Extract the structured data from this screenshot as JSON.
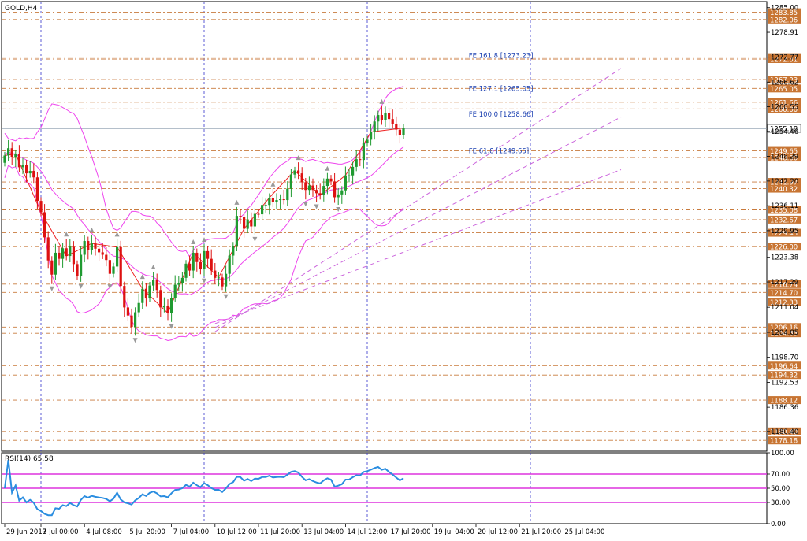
{
  "chart_data": {
    "type": "candlestick",
    "main_title": "GOLD,H4",
    "rsi_title": "RSI(14) 65.58",
    "current_price": "1255.18",
    "price_range": [
      1175.5,
      1286.5
    ],
    "rsi_range": [
      0,
      100
    ],
    "price_ticks": [
      "1285.00",
      "1278.91",
      "1272.77",
      "1266.62",
      "1260.55",
      "1254.46",
      "1248.29",
      "1242.20",
      "1236.11",
      "1229.95",
      "1223.38",
      "1217.29",
      "1211.04",
      "1204.85",
      "1198.70",
      "1192.53",
      "1186.36",
      "1180.40"
    ],
    "rsi_ticks": [
      "100.00",
      "70.00",
      "50.00",
      "30.00",
      "0.00"
    ],
    "rsi_levels": [
      70,
      50,
      30
    ],
    "levels": [
      {
        "label": "1283.85",
        "value": 1283.85
      },
      {
        "label": "1282.06",
        "value": 1282.06
      },
      {
        "label": "1272.77",
        "value": 1272.77
      },
      {
        "label": "1272.31",
        "value": 1272.31
      },
      {
        "label": "1267.23",
        "value": 1267.23
      },
      {
        "label": "1265.05",
        "value": 1265.05
      },
      {
        "label": "1261.66",
        "value": 1261.66
      },
      {
        "label": "1260.00",
        "value": 1260.0
      },
      {
        "label": "1249.65",
        "value": 1249.65
      },
      {
        "label": "1248.00",
        "value": 1248.0
      },
      {
        "label": "1241.97",
        "value": 1241.97
      },
      {
        "label": "1240.32",
        "value": 1240.32
      },
      {
        "label": "1235.08",
        "value": 1235.08
      },
      {
        "label": "1232.67",
        "value": 1232.67
      },
      {
        "label": "1229.43",
        "value": 1229.43
      },
      {
        "label": "1226.00",
        "value": 1226.0
      },
      {
        "label": "1216.74",
        "value": 1216.74
      },
      {
        "label": "1214.70",
        "value": 1214.7
      },
      {
        "label": "1212.33",
        "value": 1212.33
      },
      {
        "label": "1206.16",
        "value": 1206.16
      },
      {
        "label": "1204.63",
        "value": 1204.63
      },
      {
        "label": "1196.64",
        "value": 1196.64
      },
      {
        "label": "1194.32",
        "value": 1194.32
      },
      {
        "label": "1188.12",
        "value": 1188.12
      },
      {
        "label": "1180.40",
        "value": 1180.4
      },
      {
        "label": "1178.18",
        "value": 1178.18
      }
    ],
    "fe_labels": [
      {
        "text": "FE 161.8 [1273.23]",
        "value": 1273.23
      },
      {
        "text": "FE 127.1 [1265.05]",
        "value": 1265.05
      },
      {
        "text": "FE 100.0 [1258.66]",
        "value": 1258.66
      },
      {
        "text": "FE 61.8 [1249.65]",
        "value": 1249.65
      }
    ],
    "x_labels": [
      {
        "text": "29 Jun 2017",
        "bar": 0
      },
      {
        "text": "3 Jul 00:00",
        "bar": 10
      },
      {
        "text": "4 Jul 08:00",
        "bar": 22
      },
      {
        "text": "5 Jul 20:00",
        "bar": 34
      },
      {
        "text": "7 Jul 04:00",
        "bar": 46
      },
      {
        "text": "10 Jul 12:00",
        "bar": 58
      },
      {
        "text": "11 Jul 20:00",
        "bar": 70
      },
      {
        "text": "13 Jul 04:00",
        "bar": 82
      },
      {
        "text": "14 Jul 12:00",
        "bar": 94
      },
      {
        "text": "17 Jul 20:00",
        "bar": 106
      },
      {
        "text": "19 Jul 04:00",
        "bar": 118
      },
      {
        "text": "20 Jul 12:00",
        "bar": 130
      },
      {
        "text": "21 Jul 20:00",
        "bar": 142
      },
      {
        "text": "25 Jul 04:00",
        "bar": 154
      }
    ],
    "period_separators": [
      10,
      55,
      100,
      145
    ],
    "closes": [
      1248.5,
      1250.3,
      1248.0,
      1248.9,
      1245.6,
      1246.2,
      1244.1,
      1244.7,
      1243.1,
      1237.3,
      1234.5,
      1228.3,
      1222.6,
      1219.1,
      1224.5,
      1223.0,
      1225.6,
      1223.7,
      1226.0,
      1221.7,
      1218.7,
      1224.0,
      1227.4,
      1225.2,
      1226.8,
      1225.5,
      1224.6,
      1224.0,
      1222.7,
      1219.3,
      1221.1,
      1225.9,
      1216.3,
      1211.0,
      1209.0,
      1206.2,
      1209.8,
      1212.1,
      1215.6,
      1213.2,
      1216.4,
      1217.8,
      1215.3,
      1211.0,
      1211.3,
      1209.6,
      1213.3,
      1216.6,
      1216.9,
      1218.3,
      1221.8,
      1220.1,
      1224.5,
      1222.2,
      1220.4,
      1224.9,
      1223.0,
      1220.1,
      1218.3,
      1218.4,
      1216.2,
      1219.3,
      1223.8,
      1226.1,
      1233.6,
      1233.4,
      1230.4,
      1232.6,
      1231.0,
      1234.1,
      1234.0,
      1236.3,
      1236.3,
      1238.1,
      1237.0,
      1237.5,
      1237.7,
      1237.5,
      1240.3,
      1243.8,
      1244.8,
      1244.1,
      1241.9,
      1240.0,
      1241.1,
      1240.0,
      1239.2,
      1238.7,
      1241.0,
      1242.8,
      1242.1,
      1238.2,
      1238.9,
      1239.9,
      1243.6,
      1243.6,
      1245.7,
      1247.6,
      1247.4,
      1251.5,
      1252.4,
      1254.3,
      1256.9,
      1258.5,
      1257.3,
      1258.9,
      1257.5,
      1256.3,
      1254.9,
      1253.5,
      1255.3
    ]
  }
}
